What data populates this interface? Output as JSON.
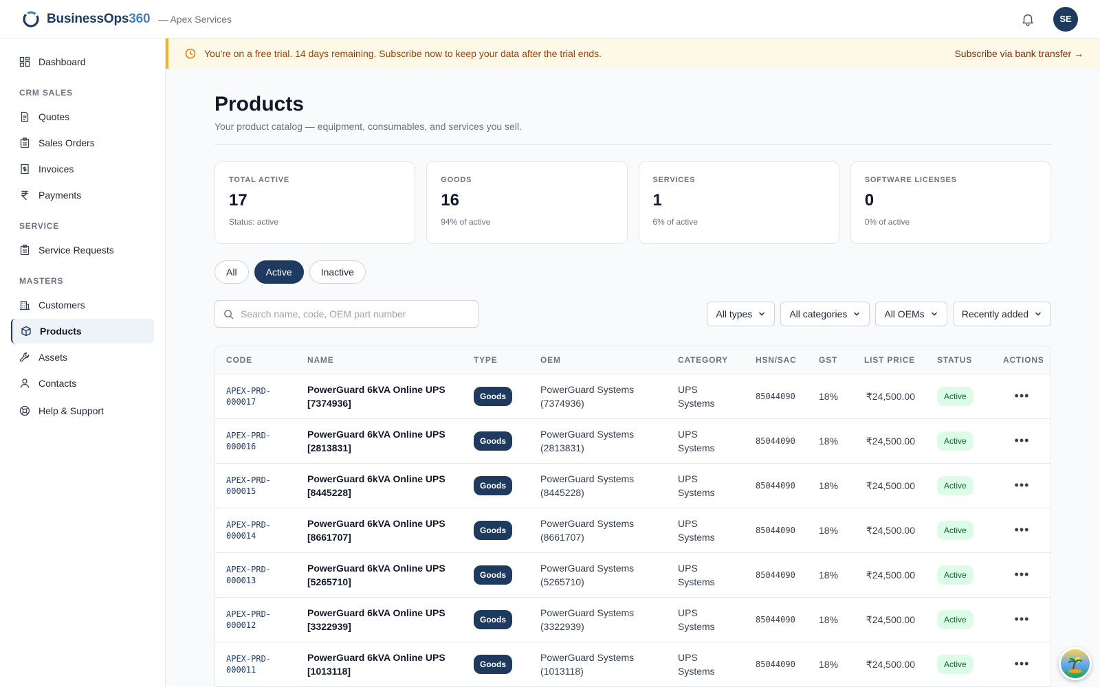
{
  "app": {
    "brand_main": "BusinessOps",
    "brand_num": "360",
    "org": "— Apex Services",
    "avatar_initials": "SE"
  },
  "sidebar": {
    "items": [
      {
        "label": "Dashboard",
        "icon": "dashboard-icon"
      }
    ],
    "sections": [
      {
        "title": "CRM SALES",
        "items": [
          {
            "label": "Quotes",
            "icon": "document-icon"
          },
          {
            "label": "Sales Orders",
            "icon": "clipboard-icon"
          },
          {
            "label": "Invoices",
            "icon": "invoice-icon"
          },
          {
            "label": "Payments",
            "icon": "rupee-icon"
          }
        ]
      },
      {
        "title": "SERVICE",
        "items": [
          {
            "label": "Service Requests",
            "icon": "clipboard-icon"
          }
        ]
      },
      {
        "title": "MASTERS",
        "items": [
          {
            "label": "Customers",
            "icon": "building-icon"
          },
          {
            "label": "Products",
            "icon": "box-icon",
            "active": true
          },
          {
            "label": "Assets",
            "icon": "wrench-icon"
          },
          {
            "label": "Contacts",
            "icon": "user-icon"
          }
        ]
      }
    ],
    "help": {
      "label": "Help & Support",
      "icon": "lifebuoy-icon"
    }
  },
  "banner": {
    "text": "You're on a free trial. 14 days remaining. Subscribe now to keep your data after the trial ends.",
    "link": "Subscribe via bank transfer →"
  },
  "page": {
    "title": "Products",
    "subtitle": "Your product catalog — equipment, consumables, and services you sell."
  },
  "stats": [
    {
      "label": "TOTAL ACTIVE",
      "value": "17",
      "sub": "Status: active"
    },
    {
      "label": "GOODS",
      "value": "16",
      "sub": "94% of active"
    },
    {
      "label": "SERVICES",
      "value": "1",
      "sub": "6% of active"
    },
    {
      "label": "SOFTWARE LICENSES",
      "value": "0",
      "sub": "0% of active"
    }
  ],
  "segments": {
    "all": "All",
    "active": "Active",
    "inactive": "Inactive",
    "selected": "Active"
  },
  "search": {
    "placeholder": "Search name, code, OEM part number",
    "value": ""
  },
  "filters": {
    "types": "All types",
    "categories": "All categories",
    "oems": "All OEMs",
    "sort": "Recently added"
  },
  "table": {
    "headers": {
      "code": "CODE",
      "name": "NAME",
      "type": "TYPE",
      "oem": "OEM",
      "category": "CATEGORY",
      "hsn": "HSN/SAC",
      "gst": "GST",
      "price": "LIST PRICE",
      "status": "STATUS",
      "actions": "ACTIONS"
    },
    "rows": [
      {
        "code_a": "APEX-PRD-",
        "code_b": "000017",
        "name": "PowerGuard 6kVA Online UPS [7374936]",
        "type": "Goods",
        "oem": "PowerGuard Systems (7374936)",
        "category": "UPS Systems",
        "hsn": "85044090",
        "gst": "18%",
        "price": "₹24,500.00",
        "status": "Active"
      },
      {
        "code_a": "APEX-PRD-",
        "code_b": "000016",
        "name": "PowerGuard 6kVA Online UPS [2813831]",
        "type": "Goods",
        "oem": "PowerGuard Systems (2813831)",
        "category": "UPS Systems",
        "hsn": "85044090",
        "gst": "18%",
        "price": "₹24,500.00",
        "status": "Active"
      },
      {
        "code_a": "APEX-PRD-",
        "code_b": "000015",
        "name": "PowerGuard 6kVA Online UPS [8445228]",
        "type": "Goods",
        "oem": "PowerGuard Systems (8445228)",
        "category": "UPS Systems",
        "hsn": "85044090",
        "gst": "18%",
        "price": "₹24,500.00",
        "status": "Active"
      },
      {
        "code_a": "APEX-PRD-",
        "code_b": "000014",
        "name": "PowerGuard 6kVA Online UPS [8661707]",
        "type": "Goods",
        "oem": "PowerGuard Systems (8661707)",
        "category": "UPS Systems",
        "hsn": "85044090",
        "gst": "18%",
        "price": "₹24,500.00",
        "status": "Active"
      },
      {
        "code_a": "APEX-PRD-",
        "code_b": "000013",
        "name": "PowerGuard 6kVA Online UPS [5265710]",
        "type": "Goods",
        "oem": "PowerGuard Systems (5265710)",
        "category": "UPS Systems",
        "hsn": "85044090",
        "gst": "18%",
        "price": "₹24,500.00",
        "status": "Active"
      },
      {
        "code_a": "APEX-PRD-",
        "code_b": "000012",
        "name": "PowerGuard 6kVA Online UPS [3322939]",
        "type": "Goods",
        "oem": "PowerGuard Systems (3322939)",
        "category": "UPS Systems",
        "hsn": "85044090",
        "gst": "18%",
        "price": "₹24,500.00",
        "status": "Active"
      },
      {
        "code_a": "APEX-PRD-",
        "code_b": "000011",
        "name": "PowerGuard 6kVA Online UPS [1013118]",
        "type": "Goods",
        "oem": "PowerGuard Systems (1013118)",
        "category": "UPS Systems",
        "hsn": "85044090",
        "gst": "18%",
        "price": "₹24,500.00",
        "status": "Active"
      }
    ]
  },
  "colors": {
    "primary": "#1e3a5f",
    "accent": "#4a7fb5",
    "banner_bg": "#fef9e7",
    "banner_border": "#f0b429",
    "status_active_bg": "#dcfce7",
    "status_active_text": "#166534"
  }
}
